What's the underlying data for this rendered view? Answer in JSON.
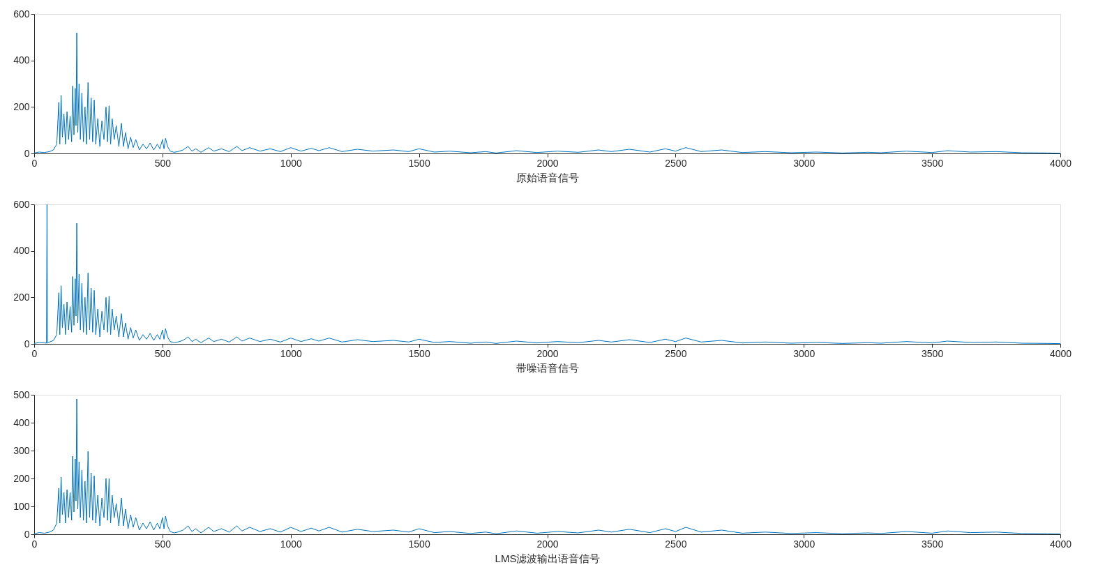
{
  "chart_data": [
    {
      "type": "line",
      "xlabel": "原始语音信号",
      "xlim": [
        0,
        4000
      ],
      "xticks": [
        0,
        500,
        1000,
        1500,
        2000,
        2500,
        3000,
        3500,
        4000
      ],
      "ylim": [
        0,
        600
      ],
      "yticks": [
        0,
        200,
        400,
        600
      ],
      "grid": false,
      "series": [
        {
          "color": "#0072bd",
          "x": [
            0,
            20,
            40,
            60,
            75,
            88,
            96,
            100,
            105,
            110,
            116,
            122,
            128,
            134,
            140,
            146,
            150,
            155,
            160,
            163,
            166,
            170,
            175,
            180,
            186,
            192,
            198,
            204,
            210,
            216,
            222,
            228,
            234,
            240,
            248,
            256,
            264,
            272,
            280,
            286,
            292,
            298,
            304,
            312,
            320,
            330,
            340,
            348,
            356,
            366,
            376,
            386,
            396,
            410,
            424,
            438,
            452,
            466,
            480,
            490,
            500,
            506,
            512,
            520,
            530,
            545,
            560,
            580,
            600,
            615,
            630,
            650,
            680,
            700,
            730,
            760,
            790,
            810,
            840,
            880,
            920,
            960,
            1000,
            1040,
            1080,
            1110,
            1150,
            1200,
            1260,
            1320,
            1400,
            1460,
            1500,
            1560,
            1620,
            1700,
            1760,
            1800,
            1880,
            1960,
            2040,
            2120,
            2200,
            2250,
            2320,
            2400,
            2460,
            2500,
            2540,
            2600,
            2680,
            2760,
            2850,
            2950,
            3050,
            3150,
            3250,
            3300,
            3400,
            3500,
            3560,
            3650,
            3750,
            3850,
            3950,
            4000
          ],
          "values": [
            2,
            6,
            4,
            8,
            15,
            40,
            220,
            40,
            250,
            70,
            170,
            40,
            180,
            60,
            160,
            50,
            290,
            80,
            280,
            120,
            519,
            90,
            300,
            60,
            260,
            50,
            200,
            40,
            305,
            60,
            240,
            50,
            230,
            40,
            150,
            30,
            140,
            60,
            200,
            50,
            205,
            40,
            150,
            60,
            120,
            30,
            130,
            30,
            90,
            20,
            70,
            25,
            60,
            15,
            40,
            20,
            45,
            15,
            40,
            20,
            60,
            20,
            65,
            30,
            10,
            5,
            8,
            15,
            30,
            10,
            20,
            5,
            25,
            10,
            20,
            8,
            30,
            12,
            25,
            10,
            20,
            8,
            25,
            10,
            22,
            12,
            25,
            8,
            18,
            10,
            15,
            8,
            20,
            6,
            10,
            3,
            8,
            2,
            12,
            4,
            10,
            5,
            15,
            8,
            18,
            6,
            20,
            10,
            25,
            8,
            15,
            4,
            8,
            3,
            6,
            2,
            5,
            3,
            10,
            4,
            12,
            6,
            8,
            3,
            2,
            1
          ]
        }
      ]
    },
    {
      "type": "line",
      "xlabel": "带噪语音信号",
      "xlim": [
        0,
        4000
      ],
      "xticks": [
        0,
        500,
        1000,
        1500,
        2000,
        2500,
        3000,
        3500,
        4000
      ],
      "ylim": [
        0,
        600
      ],
      "yticks": [
        0,
        200,
        400,
        600
      ],
      "grid": false,
      "series": [
        {
          "color": "#0072bd",
          "x": [
            0,
            20,
            40,
            48,
            50,
            52,
            60,
            75,
            88,
            96,
            100,
            105,
            110,
            116,
            122,
            128,
            134,
            140,
            146,
            150,
            155,
            160,
            163,
            166,
            170,
            175,
            180,
            186,
            192,
            198,
            204,
            210,
            216,
            222,
            228,
            234,
            240,
            248,
            256,
            264,
            272,
            280,
            286,
            292,
            298,
            304,
            312,
            320,
            330,
            340,
            348,
            356,
            366,
            376,
            386,
            396,
            410,
            424,
            438,
            452,
            466,
            480,
            490,
            500,
            506,
            512,
            520,
            530,
            545,
            560,
            580,
            600,
            615,
            630,
            650,
            680,
            700,
            730,
            760,
            790,
            810,
            840,
            880,
            920,
            960,
            1000,
            1040,
            1080,
            1110,
            1150,
            1200,
            1260,
            1320,
            1400,
            1460,
            1500,
            1560,
            1620,
            1700,
            1760,
            1800,
            1880,
            1960,
            2040,
            2120,
            2200,
            2250,
            2320,
            2400,
            2460,
            2500,
            2540,
            2600,
            2680,
            2760,
            2850,
            2950,
            3050,
            3150,
            3250,
            3300,
            3400,
            3500,
            3560,
            3650,
            3750,
            3850,
            3950,
            4000
          ],
          "values": [
            2,
            6,
            4,
            3,
            600,
            3,
            8,
            15,
            40,
            220,
            40,
            250,
            70,
            170,
            40,
            180,
            60,
            160,
            50,
            290,
            80,
            280,
            120,
            519,
            90,
            300,
            60,
            260,
            50,
            200,
            40,
            305,
            60,
            240,
            50,
            230,
            40,
            150,
            30,
            140,
            60,
            200,
            50,
            205,
            40,
            150,
            60,
            120,
            30,
            130,
            30,
            90,
            20,
            70,
            25,
            60,
            15,
            40,
            20,
            45,
            15,
            40,
            20,
            60,
            20,
            65,
            30,
            10,
            5,
            8,
            15,
            30,
            10,
            20,
            5,
            25,
            10,
            20,
            8,
            30,
            12,
            25,
            10,
            20,
            8,
            25,
            10,
            22,
            12,
            25,
            8,
            18,
            10,
            15,
            8,
            20,
            6,
            10,
            3,
            8,
            2,
            12,
            4,
            10,
            5,
            15,
            8,
            18,
            6,
            20,
            10,
            25,
            8,
            15,
            4,
            8,
            3,
            6,
            2,
            5,
            3,
            10,
            4,
            12,
            6,
            8,
            3,
            2,
            1
          ]
        }
      ]
    },
    {
      "type": "line",
      "xlabel": "LMS滤波输出语音信号",
      "xlim": [
        0,
        4000
      ],
      "xticks": [
        0,
        500,
        1000,
        1500,
        2000,
        2500,
        3000,
        3500,
        4000
      ],
      "ylim": [
        0,
        500
      ],
      "yticks": [
        0,
        100,
        200,
        300,
        400,
        500
      ],
      "grid": false,
      "series": [
        {
          "color": "#0072bd",
          "x": [
            0,
            20,
            40,
            60,
            75,
            88,
            96,
            100,
            105,
            110,
            116,
            122,
            128,
            134,
            140,
            146,
            150,
            155,
            160,
            163,
            166,
            170,
            175,
            180,
            186,
            192,
            198,
            204,
            210,
            216,
            222,
            228,
            234,
            240,
            248,
            256,
            264,
            272,
            280,
            286,
            292,
            298,
            304,
            312,
            320,
            330,
            340,
            348,
            356,
            366,
            376,
            386,
            396,
            410,
            424,
            438,
            452,
            466,
            480,
            490,
            500,
            506,
            512,
            520,
            530,
            545,
            560,
            580,
            600,
            615,
            630,
            650,
            680,
            700,
            730,
            760,
            790,
            810,
            840,
            880,
            920,
            960,
            1000,
            1040,
            1080,
            1110,
            1150,
            1200,
            1260,
            1320,
            1400,
            1460,
            1500,
            1560,
            1620,
            1700,
            1760,
            1800,
            1880,
            1960,
            2040,
            2120,
            2200,
            2250,
            2320,
            2400,
            2460,
            2500,
            2540,
            2600,
            2680,
            2760,
            2850,
            2950,
            3050,
            3150,
            3250,
            3300,
            3400,
            3500,
            3560,
            3650,
            3750,
            3850,
            3950,
            4000
          ],
          "values": [
            2,
            6,
            4,
            8,
            15,
            40,
            165,
            40,
            205,
            70,
            150,
            40,
            160,
            60,
            150,
            50,
            280,
            80,
            270,
            120,
            485,
            90,
            260,
            60,
            230,
            50,
            190,
            40,
            297,
            60,
            220,
            50,
            210,
            40,
            140,
            30,
            130,
            60,
            200,
            50,
            200,
            40,
            140,
            60,
            110,
            30,
            130,
            30,
            90,
            20,
            70,
            25,
            60,
            15,
            40,
            20,
            45,
            15,
            40,
            20,
            60,
            20,
            65,
            30,
            10,
            5,
            8,
            15,
            30,
            10,
            20,
            5,
            25,
            10,
            20,
            8,
            30,
            12,
            25,
            10,
            20,
            8,
            25,
            10,
            22,
            12,
            25,
            8,
            18,
            10,
            15,
            8,
            20,
            6,
            10,
            3,
            8,
            2,
            12,
            4,
            10,
            5,
            15,
            8,
            18,
            6,
            20,
            10,
            25,
            8,
            15,
            4,
            8,
            3,
            6,
            2,
            5,
            3,
            10,
            4,
            12,
            6,
            8,
            3,
            2,
            1
          ]
        }
      ]
    }
  ]
}
